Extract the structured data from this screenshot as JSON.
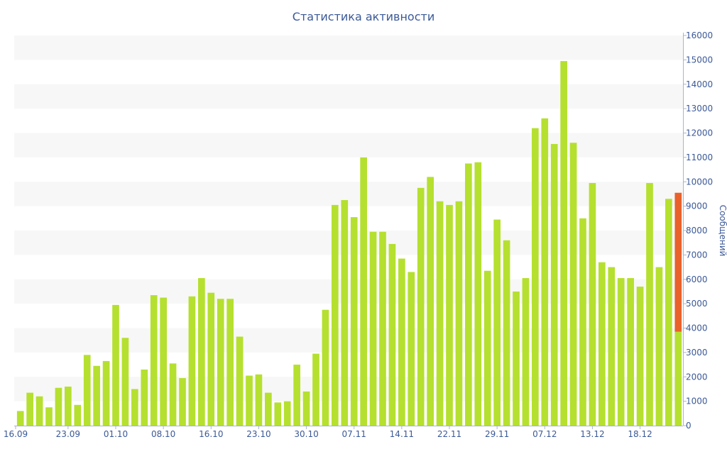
{
  "chart_data": {
    "type": "bar",
    "title": "Статистика активности",
    "ylabel": "Сообщений",
    "ylim": [
      0,
      16000
    ],
    "y_ticks": [
      0,
      1000,
      2000,
      3000,
      4000,
      5000,
      6000,
      7000,
      8000,
      9000,
      10000,
      11000,
      12000,
      13000,
      14000,
      15000,
      16000
    ],
    "y_axis_side": "right",
    "grid": "alternating horizontal bands",
    "x_tick_labels": [
      "16.09",
      "23.09",
      "01.10",
      "08.10",
      "16.10",
      "23.10",
      "30.10",
      "07.11",
      "14.11",
      "22.11",
      "29.11",
      "07.12",
      "13.12",
      "18.12"
    ],
    "x_tick_bar_index": [
      0,
      5,
      10,
      15,
      20,
      25,
      30,
      35,
      40,
      45,
      50,
      55,
      60,
      65
    ],
    "colors": {
      "bar": "#b5e02f",
      "highlight": "#e8622a",
      "text": "#3b5998",
      "band": "#f7f7f7",
      "axis": "#a9b4c9"
    },
    "series": [
      {
        "values": [
          600,
          1350,
          1200,
          750,
          1550,
          1600,
          850,
          2900,
          2450,
          2650,
          4950,
          3600,
          1500,
          2300,
          5350,
          5250,
          2550,
          1950,
          5300,
          6050,
          5450,
          5200,
          5200,
          3650,
          2050,
          2100,
          1350,
          950,
          1000,
          2500,
          1400,
          2950,
          4750,
          9050,
          9250,
          8550,
          11000,
          7950,
          7950,
          7450,
          6850,
          6300,
          9750,
          10200,
          9200,
          9050,
          9200,
          10750,
          10800,
          6350,
          8450,
          7600,
          5500,
          6050,
          12200,
          12600,
          11550,
          14950,
          11600,
          8500,
          9950,
          6700,
          6500,
          6050,
          6050,
          5700,
          9950,
          6500,
          9300,
          3850
        ]
      },
      {
        "values": [
          0,
          0,
          0,
          0,
          0,
          0,
          0,
          0,
          0,
          0,
          0,
          0,
          0,
          0,
          0,
          0,
          0,
          0,
          0,
          0,
          0,
          0,
          0,
          0,
          0,
          0,
          0,
          0,
          0,
          0,
          0,
          0,
          0,
          0,
          0,
          0,
          0,
          0,
          0,
          0,
          0,
          0,
          0,
          0,
          0,
          0,
          0,
          0,
          0,
          0,
          0,
          0,
          0,
          0,
          0,
          0,
          0,
          0,
          0,
          0,
          0,
          0,
          0,
          0,
          0,
          0,
          0,
          0,
          0,
          5700
        ]
      }
    ]
  }
}
